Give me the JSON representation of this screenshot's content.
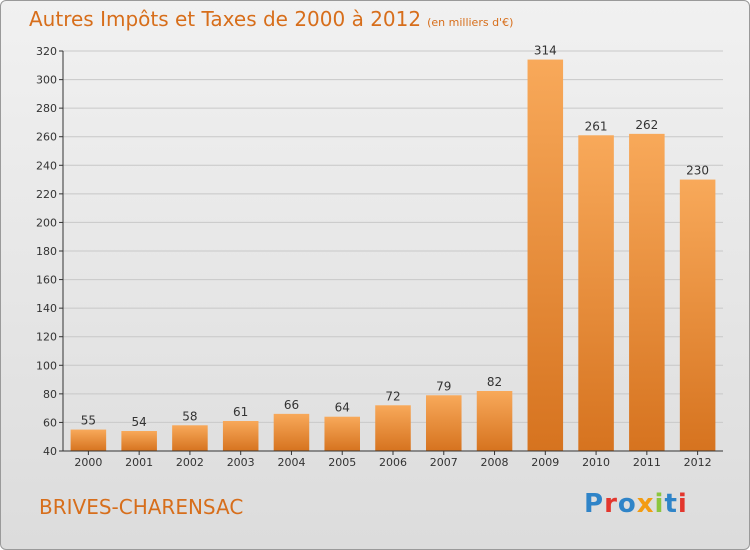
{
  "title": "Autres Impôts et Taxes de 2000 à 2012",
  "title_unit": "(en milliers d'€)",
  "city": "BRIVES-CHARENSAC",
  "logo": {
    "text": "Proxiti",
    "letter_colors": [
      "#2f84c8",
      "#e3362d",
      "#2f84c8",
      "#f39c12",
      "#8cc63f",
      "#2f84c8",
      "#e3362d"
    ]
  },
  "colors": {
    "bar_light": "#f8a95a",
    "bar_dark": "#d6731f",
    "title": "#d76e1b",
    "axis": "#333333"
  },
  "chart_data": {
    "type": "bar",
    "categories": [
      "2000",
      "2001",
      "2002",
      "2003",
      "2004",
      "2005",
      "2006",
      "2007",
      "2008",
      "2009",
      "2010",
      "2011",
      "2012"
    ],
    "values": [
      55,
      54,
      58,
      61,
      66,
      64,
      72,
      79,
      82,
      314,
      261,
      262,
      230
    ],
    "ylim": [
      40,
      320
    ],
    "yticks": [
      40,
      60,
      80,
      100,
      120,
      140,
      160,
      180,
      200,
      220,
      240,
      260,
      280,
      300,
      320
    ],
    "grid": true,
    "data_labels": true
  }
}
